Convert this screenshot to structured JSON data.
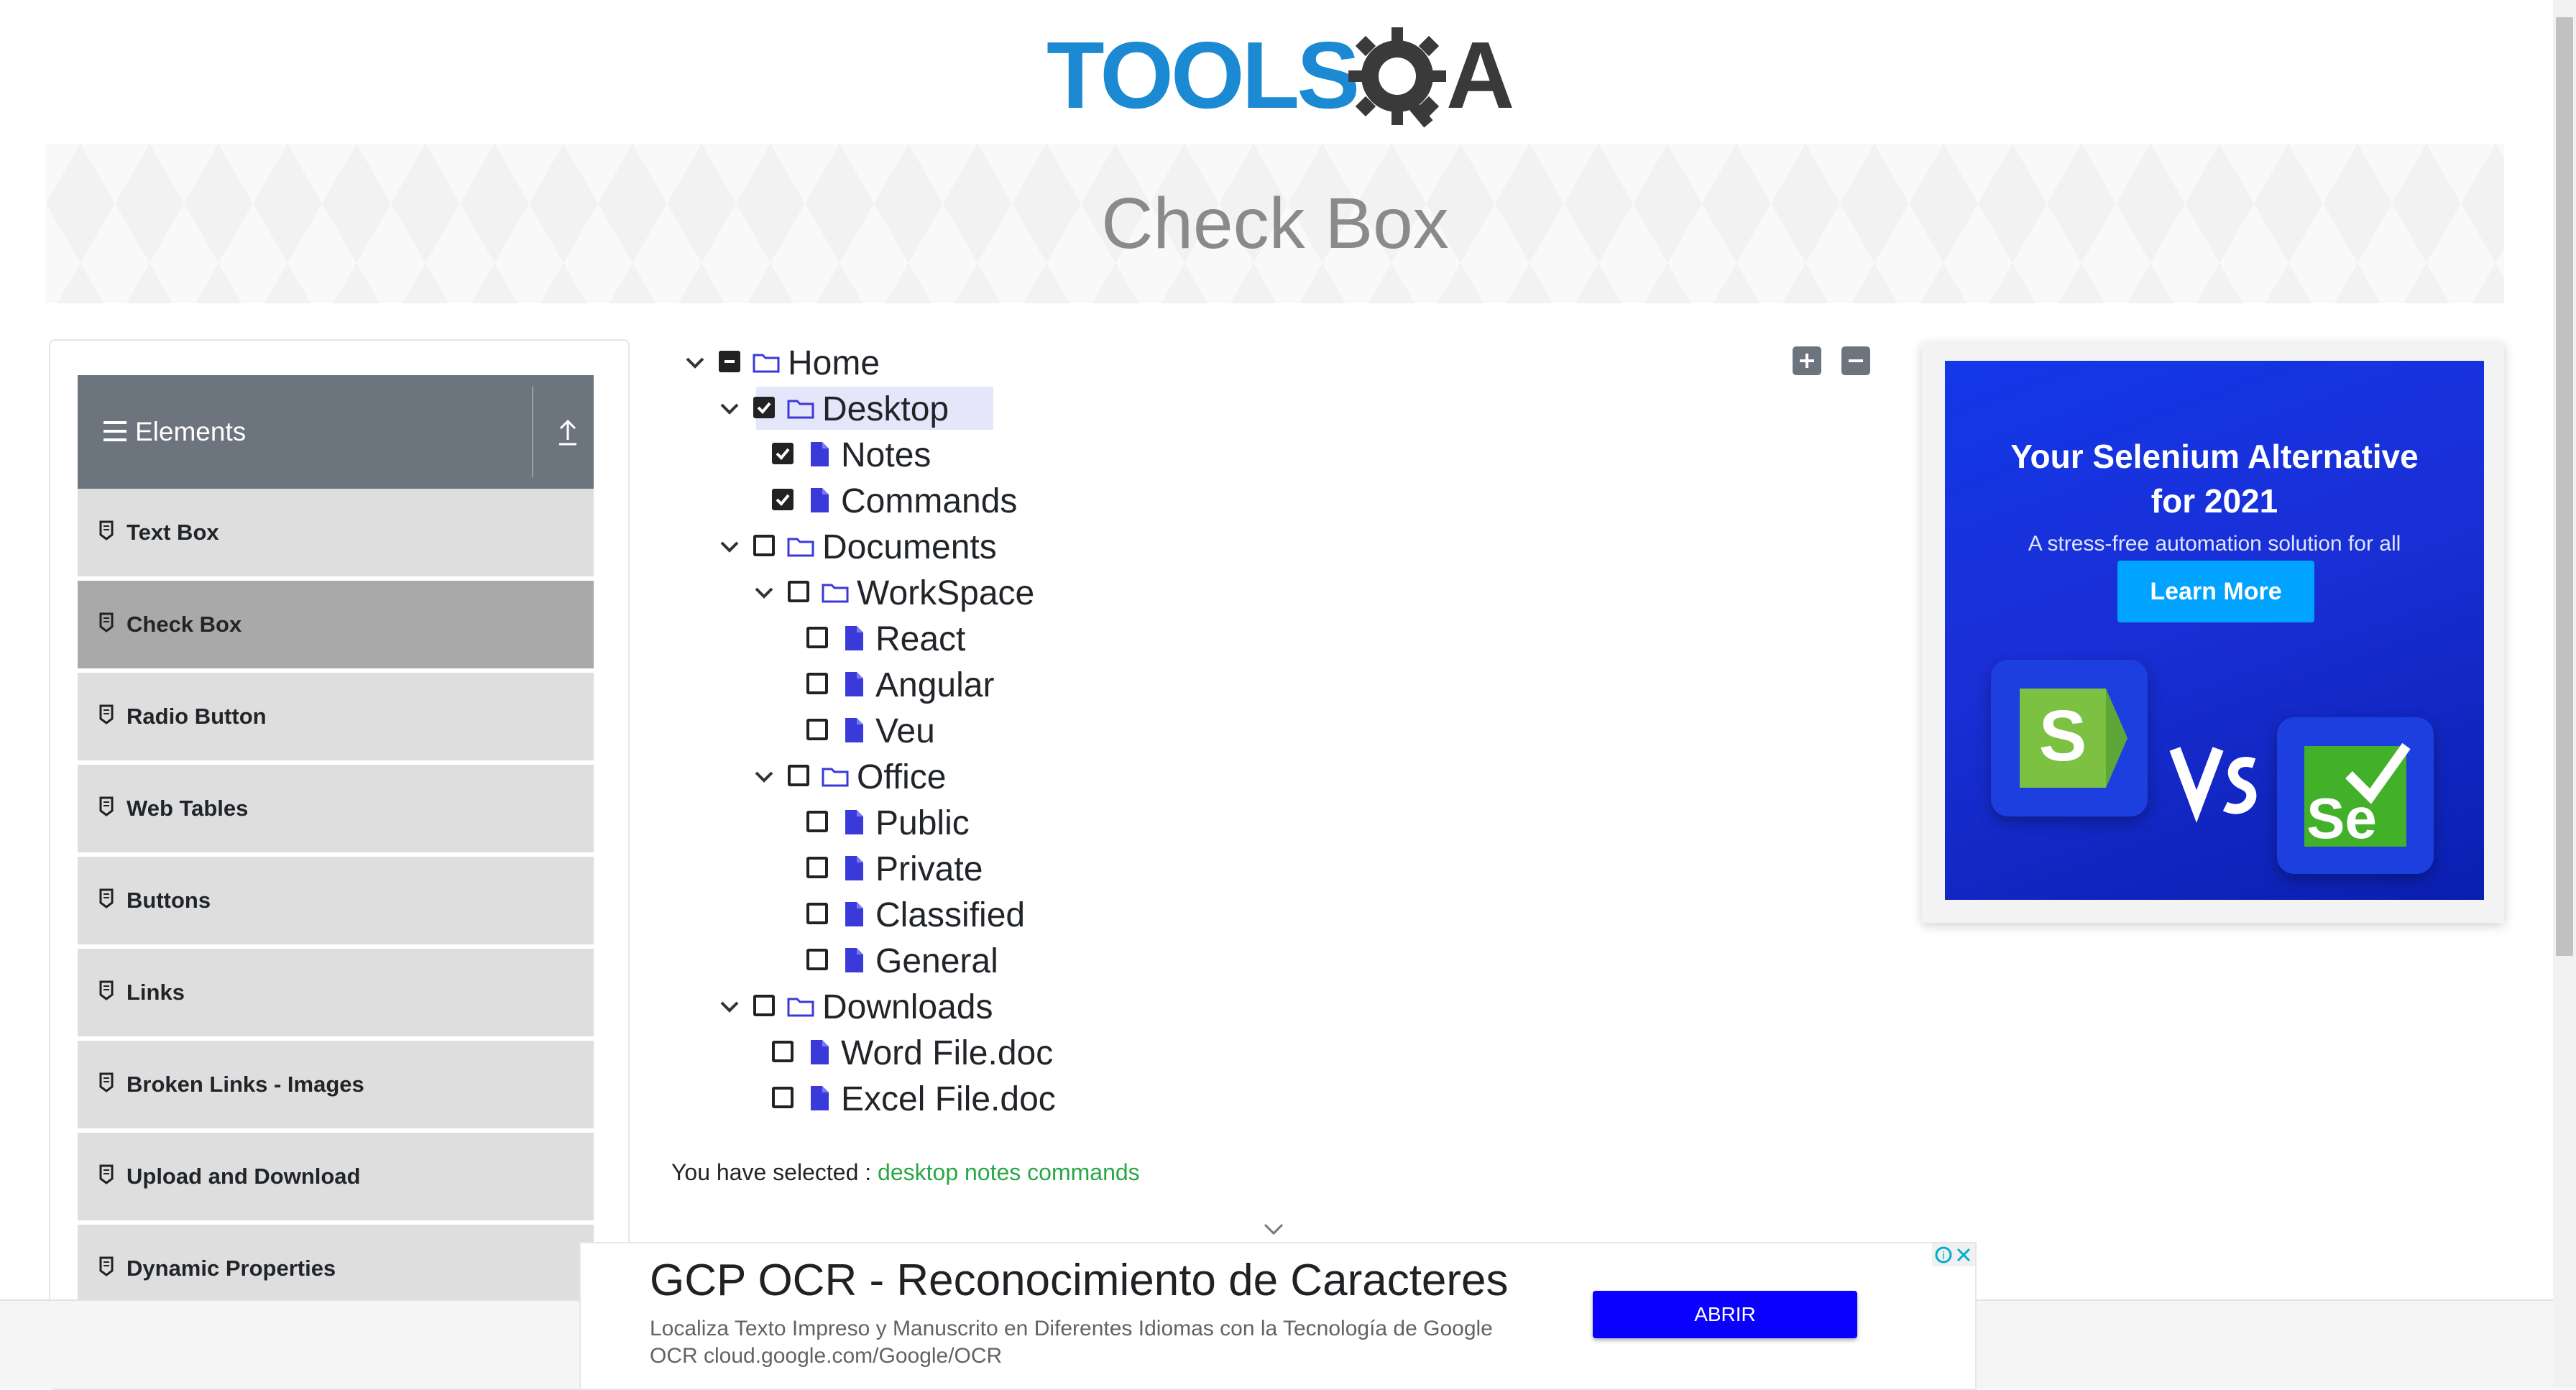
{
  "header": {
    "logo_text_left": "TOOLS",
    "logo_text_right": "A",
    "page_title": "Check Box"
  },
  "sidebar": {
    "group_label": "Elements",
    "items": [
      {
        "label": "Text Box",
        "active": false
      },
      {
        "label": "Check Box",
        "active": true
      },
      {
        "label": "Radio Button",
        "active": false
      },
      {
        "label": "Web Tables",
        "active": false
      },
      {
        "label": "Buttons",
        "active": false
      },
      {
        "label": "Links",
        "active": false
      },
      {
        "label": "Broken Links - Images",
        "active": false
      },
      {
        "label": "Upload and Download",
        "active": false
      },
      {
        "label": "Dynamic Properties",
        "active": false
      }
    ]
  },
  "tree": {
    "nodes": [
      {
        "label": "Home",
        "state": "half",
        "type": "folder",
        "expanded": true
      },
      {
        "label": "Desktop",
        "state": "checked",
        "type": "folder",
        "expanded": true
      },
      {
        "label": "Notes",
        "state": "checked",
        "type": "file"
      },
      {
        "label": "Commands",
        "state": "checked",
        "type": "file"
      },
      {
        "label": "Documents",
        "state": "unchecked",
        "type": "folder",
        "expanded": true
      },
      {
        "label": "WorkSpace",
        "state": "unchecked",
        "type": "folder",
        "expanded": true
      },
      {
        "label": "React",
        "state": "unchecked",
        "type": "file"
      },
      {
        "label": "Angular",
        "state": "unchecked",
        "type": "file"
      },
      {
        "label": "Veu",
        "state": "unchecked",
        "type": "file"
      },
      {
        "label": "Office",
        "state": "unchecked",
        "type": "folder",
        "expanded": true
      },
      {
        "label": "Public",
        "state": "unchecked",
        "type": "file"
      },
      {
        "label": "Private",
        "state": "unchecked",
        "type": "file"
      },
      {
        "label": "Classified",
        "state": "unchecked",
        "type": "file"
      },
      {
        "label": "General",
        "state": "unchecked",
        "type": "file"
      },
      {
        "label": "Downloads",
        "state": "unchecked",
        "type": "folder",
        "expanded": true
      },
      {
        "label": "Word File.doc",
        "state": "unchecked",
        "type": "file"
      },
      {
        "label": "Excel File.doc",
        "state": "unchecked",
        "type": "file"
      }
    ]
  },
  "result": {
    "prefix": "You have selected :",
    "selected": "desktop notes commands"
  },
  "ad_right": {
    "title_line1": "Your Selenium Alternative",
    "title_line2": "for 2021",
    "subtitle": "A stress-free automation solution for all",
    "button": "Learn More"
  },
  "ad_bottom": {
    "title": "GCP OCR - Reconocimiento de Caracteres",
    "description": "Localiza Texto Impreso y Manuscrito en Diferentes Idiomas con la Tecnología de Google OCR cloud.google.com/Google/OCR",
    "button": "ABRIR"
  },
  "colors": {
    "accent_blue": "#1b8ad3",
    "file_icon": "#3a3adb",
    "selected_text": "#28a745",
    "sidebar_header": "#6c757d"
  }
}
